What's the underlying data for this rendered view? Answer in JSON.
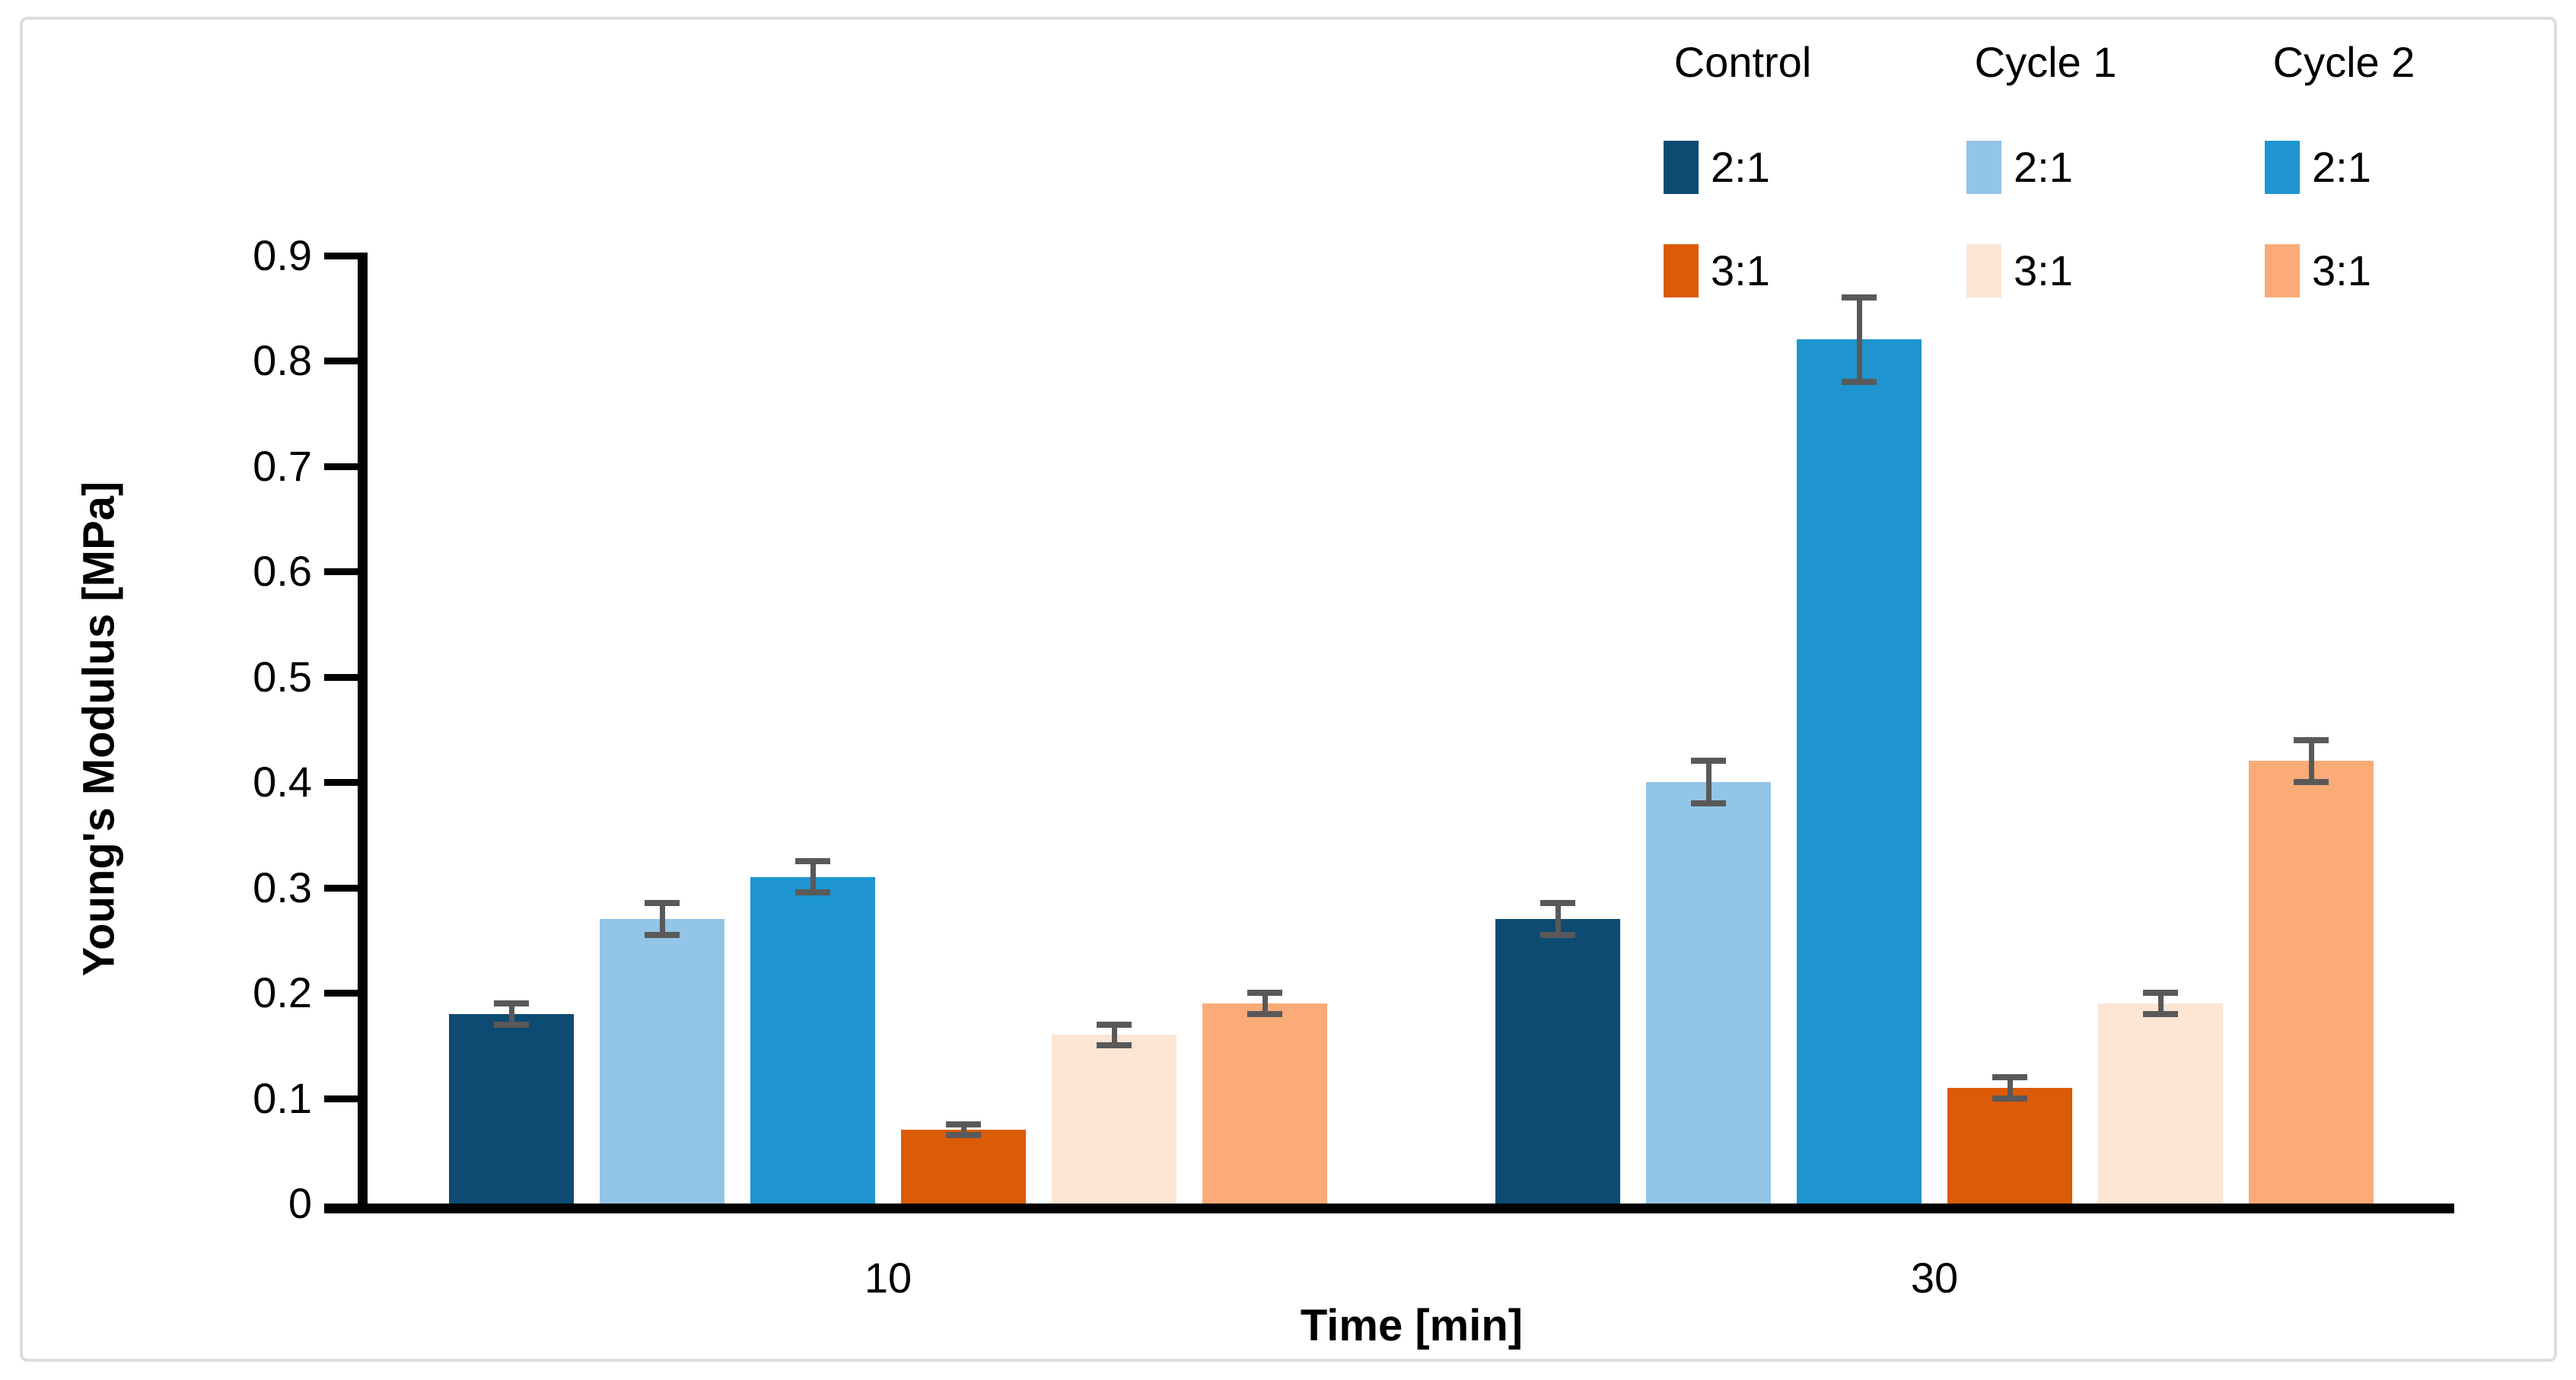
{
  "chart_data": {
    "type": "bar",
    "title": "",
    "ylabel": "Young's Modulus [MPa]",
    "xlabel": "Time [min]",
    "ylim": [
      0,
      0.9
    ],
    "y_tick_labels": [
      "0",
      "0.1",
      "0.2",
      "0.3",
      "0.4",
      "0.5",
      "0.6",
      "0.7",
      "0.8",
      "0.9"
    ],
    "categories": [
      "10",
      "30"
    ],
    "grid": false,
    "legend_position": "top-right",
    "legend_columns": [
      {
        "header": "Control",
        "entries": [
          {
            "label": "2:1",
            "color": "#0d4b73"
          },
          {
            "label": "3:1",
            "color": "#dc5b07"
          }
        ]
      },
      {
        "header": "Cycle 1",
        "entries": [
          {
            "label": "2:1",
            "color": "#92c5e8"
          },
          {
            "label": "3:1",
            "color": "#fde5d3"
          }
        ]
      },
      {
        "header": "Cycle 2",
        "entries": [
          {
            "label": "2:1",
            "color": "#1e95d0"
          },
          {
            "label": "3:1",
            "color": "#faab77"
          }
        ]
      }
    ],
    "series": [
      {
        "name": "Control 2:1",
        "color": "#0d4b73",
        "values": [
          0.18,
          0.27
        ],
        "errors": [
          0.01,
          0.015
        ]
      },
      {
        "name": "Cycle 1 2:1",
        "color": "#92c5e8",
        "values": [
          0.27,
          0.4
        ],
        "errors": [
          0.015,
          0.02
        ]
      },
      {
        "name": "Cycle 2 2:1",
        "color": "#1e95d0",
        "values": [
          0.31,
          0.82
        ],
        "errors": [
          0.015,
          0.04
        ]
      },
      {
        "name": "Control 3:1",
        "color": "#dc5b07",
        "values": [
          0.07,
          0.11
        ],
        "errors": [
          0.005,
          0.01
        ]
      },
      {
        "name": "Cycle 1 3:1",
        "color": "#fde5d3",
        "values": [
          0.16,
          0.19
        ],
        "errors": [
          0.01,
          0.01
        ]
      },
      {
        "name": "Cycle 2 3:1",
        "color": "#faab77",
        "values": [
          0.19,
          0.42
        ],
        "errors": [
          0.01,
          0.02
        ]
      }
    ],
    "error_bar_color": "#595959",
    "axis_color": "#000000",
    "frame_border_color": "#dcdcdc",
    "background": "#ffffff"
  }
}
